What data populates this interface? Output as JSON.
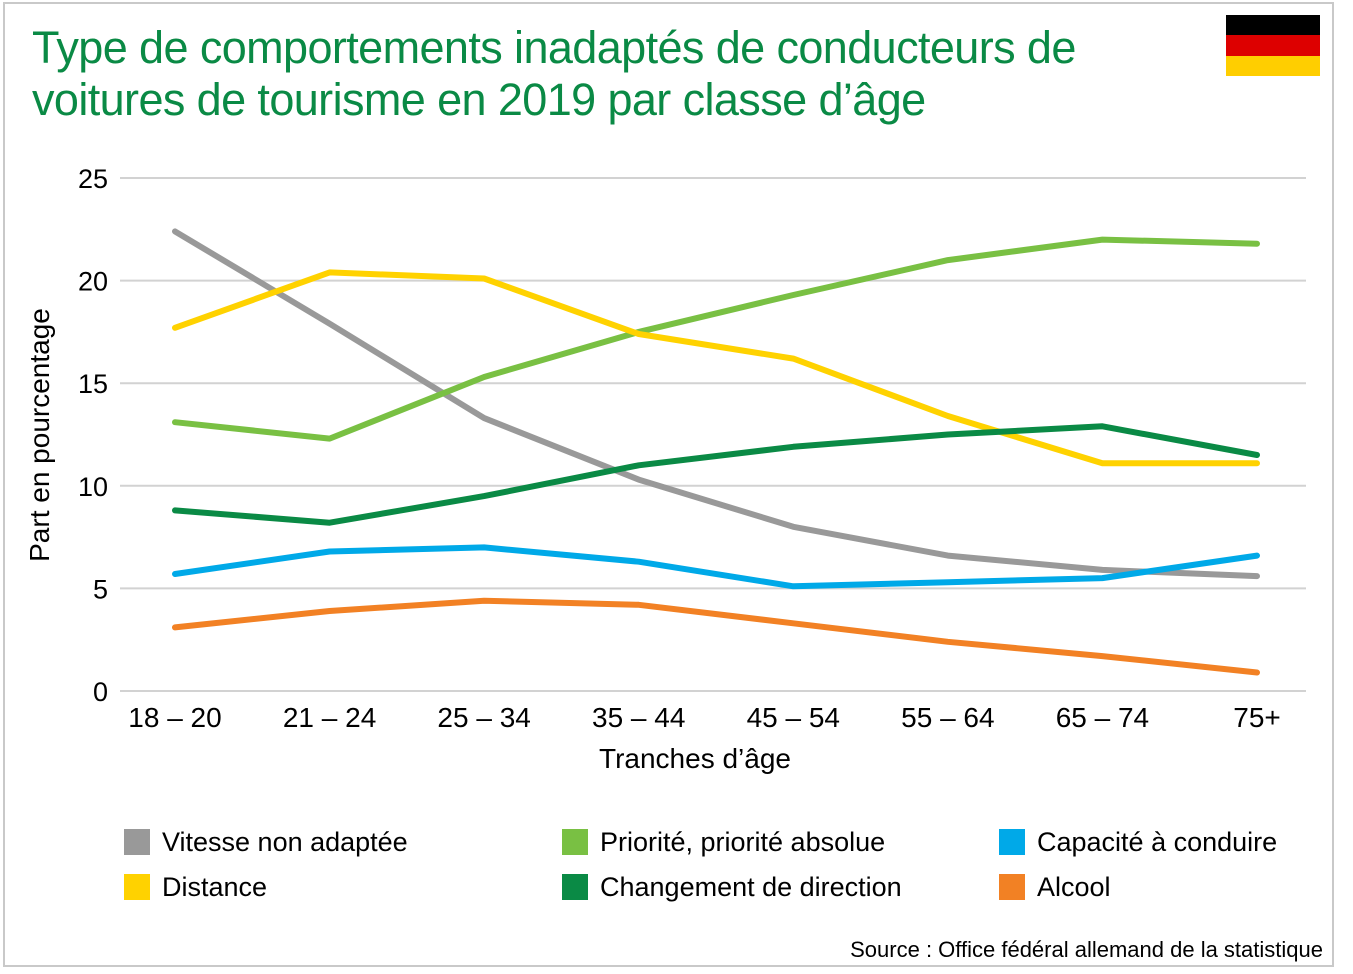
{
  "title": "Type de comportements inadaptés de conducteurs de voitures de tourisme en 2019 par classe d’âge",
  "flag": {
    "icon": "germany-flag-icon",
    "colors": [
      "#000000",
      "#dd0000",
      "#ffce00"
    ]
  },
  "chart_data": {
    "type": "line",
    "title": "Type de comportements inadaptés de conducteurs de voitures de tourisme en 2019 par classe d’âge",
    "xlabel": "Tranches d’âge",
    "ylabel": "Part en pourcentage",
    "categories": [
      "18 – 20",
      "21 – 24",
      "25 – 34",
      "35 – 44",
      "45 – 54",
      "55 – 64",
      "65 – 74",
      "75+"
    ],
    "ylim": [
      0,
      25
    ],
    "yticks": [
      0,
      5,
      10,
      15,
      20,
      25
    ],
    "grid": true,
    "legend_position": "bottom",
    "series": [
      {
        "name": "Vitesse non adaptée",
        "color": "#999999",
        "values": [
          22.4,
          17.9,
          13.3,
          10.3,
          8.0,
          6.6,
          5.9,
          5.6
        ]
      },
      {
        "name": "Priorité, priorité absolue",
        "color": "#79c043",
        "values": [
          13.1,
          12.3,
          15.3,
          17.5,
          19.3,
          21.0,
          22.0,
          21.8
        ]
      },
      {
        "name": "Capacité à conduire",
        "color": "#00a9e8",
        "values": [
          5.7,
          6.8,
          7.0,
          6.3,
          5.1,
          5.3,
          5.5,
          6.6
        ]
      },
      {
        "name": "Distance",
        "color": "#ffd200",
        "values": [
          17.7,
          20.4,
          20.1,
          17.4,
          16.2,
          13.4,
          11.1,
          11.1
        ]
      },
      {
        "name": "Changement de direction",
        "color": "#0a8a45",
        "values": [
          8.8,
          8.2,
          9.5,
          11.0,
          11.9,
          12.5,
          12.9,
          11.5
        ]
      },
      {
        "name": "Alcool",
        "color": "#f28124",
        "values": [
          3.1,
          3.9,
          4.4,
          4.2,
          3.3,
          2.4,
          1.7,
          0.9
        ]
      }
    ]
  },
  "source": "Source : Office fédéral allemand de la statistique"
}
